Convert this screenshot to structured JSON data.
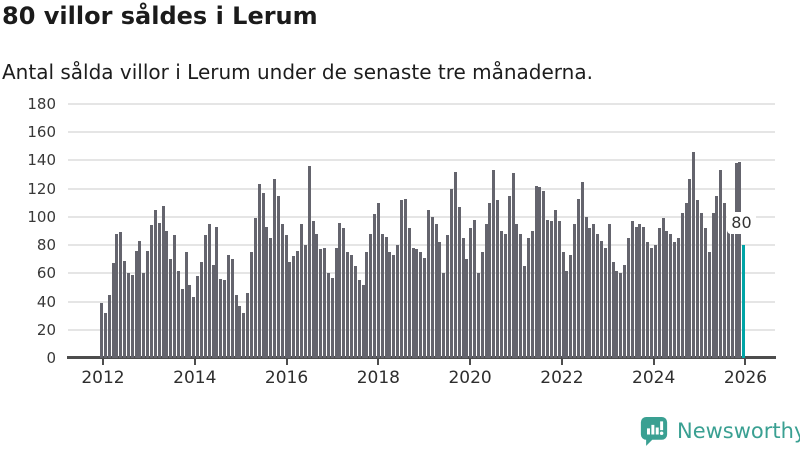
{
  "header": {
    "title": "80 villor såldes i Lerum",
    "subtitle": "Antal sålda villor i Lerum under de senaste tre månaderna."
  },
  "chart_data": {
    "type": "bar",
    "title": "80 villor såldes i Lerum",
    "subtitle": "Antal sålda villor i Lerum under de senaste tre månaderna.",
    "series_name": "Antal sålda villor (rullande tre månader)",
    "x_start": "2012-01",
    "x_end": "2025-12",
    "x_frequency": "monthly",
    "values": [
      39,
      32,
      45,
      67,
      88,
      89,
      69,
      60,
      59,
      76,
      83,
      60,
      76,
      94,
      105,
      96,
      108,
      90,
      70,
      87,
      62,
      49,
      75,
      52,
      43,
      58,
      68,
      87,
      95,
      66,
      93,
      56,
      55,
      73,
      70,
      45,
      37,
      32,
      46,
      75,
      99,
      123,
      117,
      93,
      85,
      127,
      115,
      95,
      87,
      68,
      72,
      76,
      95,
      80,
      136,
      97,
      88,
      77,
      78,
      60,
      57,
      78,
      96,
      92,
      75,
      73,
      65,
      55,
      52,
      75,
      88,
      102,
      110,
      88,
      86,
      75,
      73,
      80,
      112,
      113,
      92,
      78,
      77,
      75,
      71,
      105,
      100,
      95,
      82,
      60,
      87,
      120,
      132,
      107,
      85,
      70,
      92,
      98,
      60,
      75,
      95,
      110,
      133,
      112,
      90,
      88,
      115,
      131,
      95,
      88,
      65,
      85,
      90,
      122,
      121,
      118,
      98,
      97,
      105,
      97,
      75,
      62,
      73,
      95,
      113,
      125,
      100,
      92,
      95,
      88,
      83,
      78,
      95,
      68,
      62,
      60,
      66,
      85,
      97,
      93,
      95,
      93,
      82,
      78,
      80,
      92,
      99,
      90,
      88,
      82,
      85,
      103,
      110,
      127,
      146,
      112,
      103,
      92,
      75,
      103,
      115,
      133,
      110,
      92,
      102,
      138,
      139,
      80
    ],
    "yticks": [
      0,
      20,
      40,
      60,
      80,
      100,
      120,
      140,
      160,
      180
    ],
    "xticks": [
      2012,
      2014,
      2016,
      2018,
      2020,
      2022,
      2024,
      2026
    ],
    "ylim": [
      0,
      180
    ],
    "grid": "horizontal",
    "legend": "none",
    "bar_color": "#64646d",
    "highlight": {
      "index": 167,
      "label": "80",
      "value": 80,
      "color": "#00a4a6"
    }
  },
  "branding": {
    "wordmark": "Newsworthy",
    "logo_icon": "newsworthy-speech-bubble-chart-icon",
    "color": "#3aa092"
  }
}
